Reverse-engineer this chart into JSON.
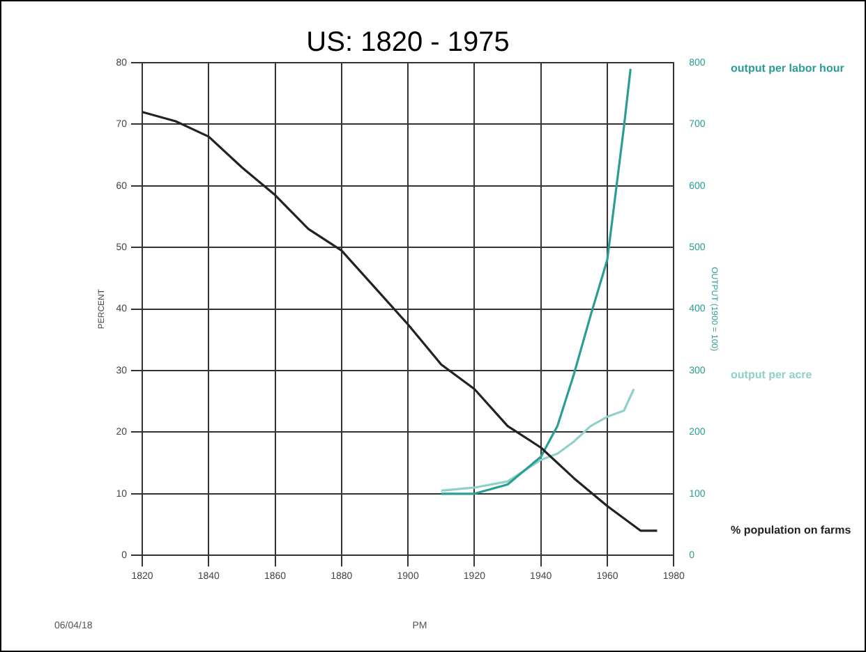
{
  "chart_data": {
    "type": "line",
    "title": "US: 1820 - 1975",
    "ylabel": "PERCENT",
    "y2label": "OUTPUT (1900 = 100)",
    "xlim": [
      1820,
      1980
    ],
    "xticks": [
      1820,
      1840,
      1860,
      1880,
      1900,
      1920,
      1940,
      1960,
      1980
    ],
    "ylim": [
      0,
      80
    ],
    "yticks": [
      0,
      10,
      20,
      30,
      40,
      50,
      60,
      70,
      80
    ],
    "y2lim": [
      0,
      800
    ],
    "y2ticks": [
      0,
      100,
      200,
      300,
      400,
      500,
      600,
      700,
      800
    ],
    "grid": true,
    "legend": false,
    "marker": "none",
    "line_style": "solid",
    "series": [
      {
        "name": "% population on farms",
        "color": "#222222",
        "x": [
          1820,
          1830,
          1840,
          1850,
          1860,
          1870,
          1880,
          1890,
          1900,
          1910,
          1920,
          1930,
          1940,
          1950,
          1960,
          1970,
          1975
        ],
        "values": [
          72,
          70.5,
          68,
          63,
          58.5,
          53,
          49.5,
          43.5,
          37.5,
          31,
          27,
          21,
          17.5,
          12.5,
          8,
          4,
          4
        ]
      },
      {
        "name": "output per labor hour",
        "color": "#2a9d94",
        "axis": "y2",
        "x": [
          1910,
          1920,
          1930,
          1940,
          1945,
          1950,
          1955,
          1960,
          1965,
          1967
        ],
        "values": [
          100,
          100,
          115,
          160,
          210,
          295,
          390,
          480,
          695,
          790
        ]
      },
      {
        "name": "output per acre",
        "color": "#8fd0c8",
        "axis": "y2",
        "x": [
          1910,
          1920,
          1930,
          1940,
          1945,
          1950,
          1955,
          1960,
          1965,
          1968
        ],
        "values": [
          105,
          110,
          120,
          155,
          165,
          185,
          210,
          225,
          235,
          270
        ]
      }
    ],
    "annotations": [
      "06/04/18",
      "PM"
    ]
  }
}
